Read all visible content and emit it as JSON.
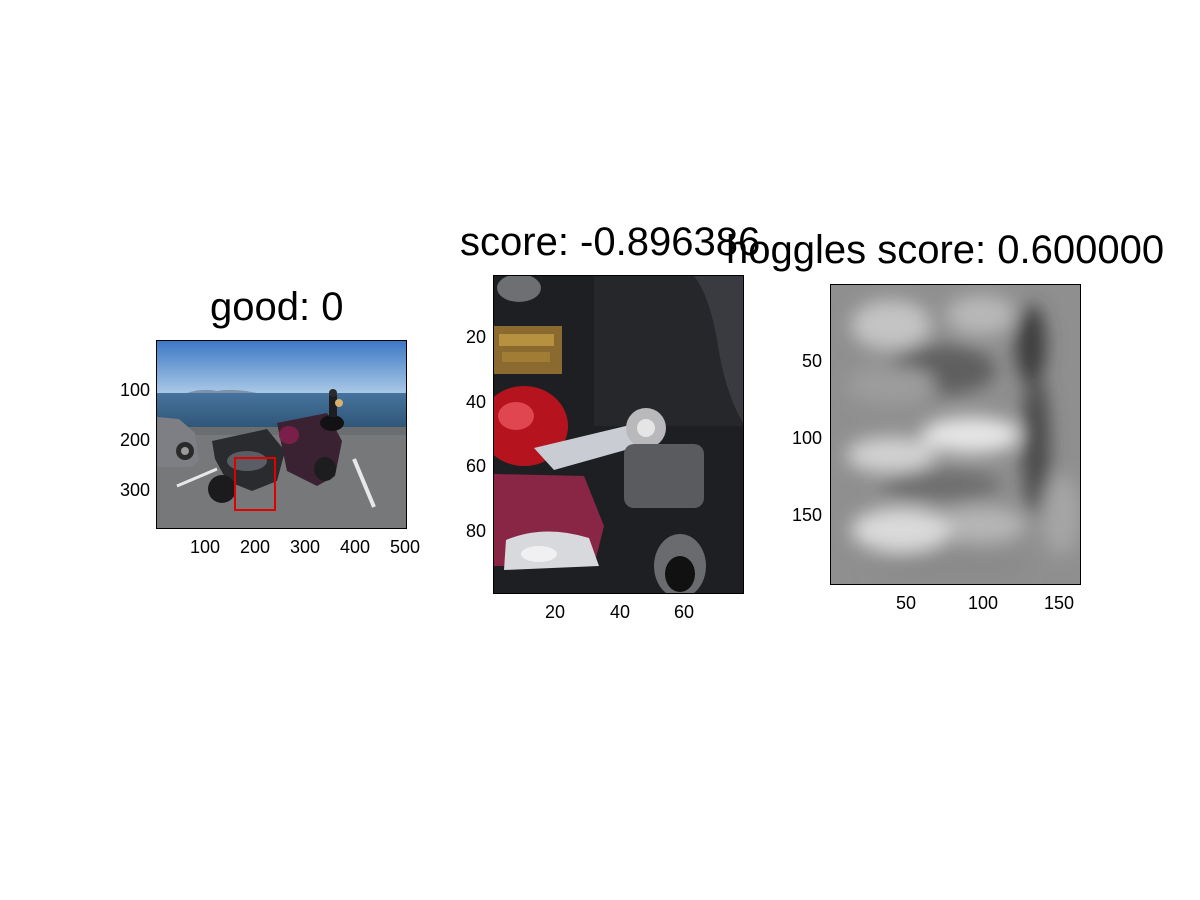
{
  "panels": [
    {
      "title": "good: 0",
      "x_ticks": [
        "100",
        "200",
        "300",
        "400",
        "500"
      ],
      "y_ticks": [
        "100",
        "200",
        "300"
      ],
      "bbox_color": "#e00000"
    },
    {
      "title": "score: -0.896386",
      "x_ticks": [
        "20",
        "40",
        "60"
      ],
      "y_ticks": [
        "20",
        "40",
        "60",
        "80"
      ]
    },
    {
      "title": "hoggles score: 0.600000",
      "x_ticks": [
        "50",
        "100",
        "150"
      ],
      "y_ticks": [
        "50",
        "100",
        "150"
      ]
    }
  ]
}
